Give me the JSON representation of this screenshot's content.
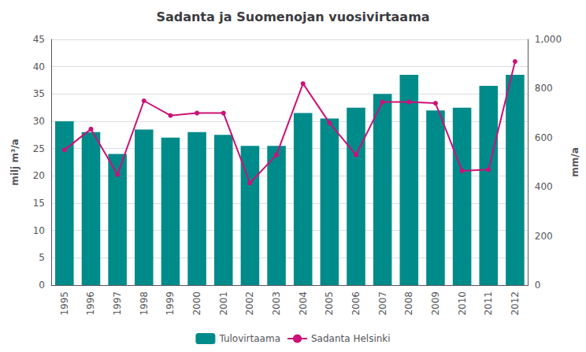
{
  "chart_data": {
    "type": "bar",
    "title": "Sadanta ja Suomenojan vuosivirtaama",
    "categories": [
      "1995",
      "1996",
      "1997",
      "1998",
      "1999",
      "2000",
      "2001",
      "2002",
      "2003",
      "2004",
      "2005",
      "2006",
      "2007",
      "2008",
      "2009",
      "2010",
      "2011",
      "2012"
    ],
    "series": [
      {
        "name": "Tulovirtaama",
        "type": "bar",
        "color": "#008B8B",
        "values": [
          30.0,
          28.0,
          24.0,
          28.5,
          27.0,
          28.0,
          27.5,
          25.5,
          25.5,
          31.5,
          30.5,
          32.5,
          35.0,
          38.5,
          32.0,
          32.5,
          36.5,
          38.5
        ]
      },
      {
        "name": "Sadanta Helsinki",
        "type": "line",
        "color": "#CC1177",
        "axis": "y2",
        "marker": "circle",
        "values": [
          550,
          635,
          450,
          750,
          690,
          700,
          700,
          415,
          530,
          820,
          660,
          530,
          745,
          745,
          740,
          465,
          470,
          910
        ]
      }
    ],
    "ylabel": "milj m³/a",
    "y2label": "mm/a",
    "ylim": [
      0,
      45
    ],
    "yticks": [
      0,
      5,
      10,
      15,
      20,
      25,
      30,
      35,
      40,
      45
    ],
    "y2lim": [
      0,
      1000
    ],
    "y2ticks": [
      0,
      200,
      400,
      600,
      800,
      1000
    ],
    "grid": true,
    "legend": "bottom"
  }
}
